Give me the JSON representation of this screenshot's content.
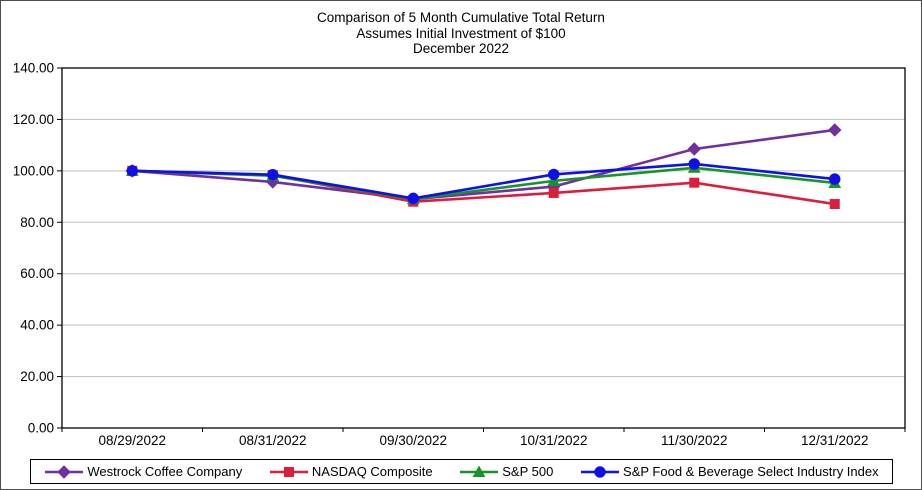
{
  "figure": {
    "title_lines": [
      "Comparison of 5 Month Cumulative Total Return",
      "Assumes Initial Investment of $100",
      "December 2022"
    ]
  },
  "chart_data": {
    "type": "line",
    "title": "Comparison of 5 Month Cumulative Total Return",
    "subtitle": "Assumes Initial Investment of $100",
    "subtitle2": "December 2022",
    "categories": [
      "08/29/2022",
      "08/31/2022",
      "09/30/2022",
      "10/31/2022",
      "11/30/2022",
      "12/31/2022"
    ],
    "series": [
      {
        "name": "Westrock Coffee Company",
        "color": "#7030A0",
        "marker": "diamond",
        "values": [
          100.0,
          95.7,
          89.0,
          93.9,
          108.5,
          115.9
        ]
      },
      {
        "name": "NASDAQ Composite",
        "color": "#DC1E3C",
        "marker": "square",
        "values": [
          100.0,
          98.3,
          88.0,
          91.4,
          95.4,
          87.1
        ]
      },
      {
        "name": "S&P 500",
        "color": "#169428",
        "marker": "triangle",
        "values": [
          100.0,
          98.1,
          89.0,
          96.1,
          101.2,
          95.3
        ]
      },
      {
        "name": "S&P Food & Beverage Select Industry Index",
        "color": "#0F0FE8",
        "marker": "circle",
        "values": [
          100.0,
          98.5,
          89.3,
          98.6,
          102.7,
          96.8
        ]
      }
    ],
    "xlabel": "",
    "ylabel": "",
    "ylim": [
      0,
      140
    ],
    "ytick_step": 20,
    "ytick_labels": [
      "140.00",
      "120.00",
      "100.00",
      "80.00",
      "60.00",
      "40.00",
      "20.00",
      "0.00"
    ],
    "grid": "horizontal",
    "gridline_color": "#C0C0C0",
    "axis_color": "#000000",
    "legend_position": "bottom"
  }
}
